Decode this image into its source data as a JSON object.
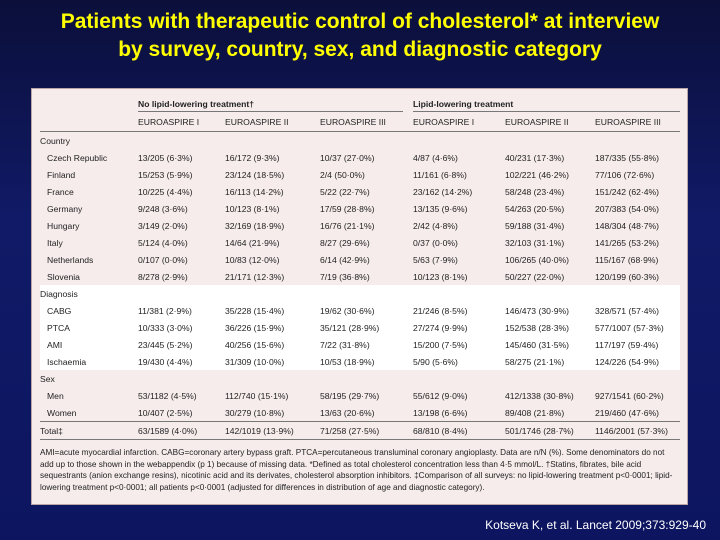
{
  "title": {
    "line1": "Patients with therapeutic control of cholesterol* at interview",
    "line2": "by survey, country, sex, and diagnostic category"
  },
  "table": {
    "group_headers": [
      "No lipid-lowering treatment†",
      "Lipid-lowering treatment"
    ],
    "subheaders": [
      "EUROASPIRE I",
      "EUROASPIRE II",
      "EUROASPIRE III",
      "EUROASPIRE I",
      "EUROASPIRE II",
      "EUROASPIRE III"
    ],
    "sections": [
      {
        "title": "Country",
        "rows": [
          {
            "label": "Czech Republic",
            "values": [
              "13/205 (6·3%)",
              "16/172 (9·3%)",
              "10/37 (27·0%)",
              "4/87 (4·6%)",
              "40/231 (17·3%)",
              "187/335 (55·8%)"
            ]
          },
          {
            "label": "Finland",
            "values": [
              "15/253 (5·9%)",
              "23/124 (18·5%)",
              "2/4 (50·0%)",
              "11/161 (6·8%)",
              "102/221 (46·2%)",
              "77/106 (72·6%)"
            ]
          },
          {
            "label": "France",
            "values": [
              "10/225 (4·4%)",
              "16/113 (14·2%)",
              "5/22 (22·7%)",
              "23/162 (14·2%)",
              "58/248 (23·4%)",
              "151/242 (62·4%)"
            ]
          },
          {
            "label": "Germany",
            "values": [
              "9/248 (3·6%)",
              "10/123 (8·1%)",
              "17/59 (28·8%)",
              "13/135 (9·6%)",
              "54/263 (20·5%)",
              "207/383 (54·0%)"
            ]
          },
          {
            "label": "Hungary",
            "values": [
              "3/149 (2·0%)",
              "32/169 (18·9%)",
              "16/76 (21·1%)",
              "2/42 (4·8%)",
              "59/188 (31·4%)",
              "148/304 (48·7%)"
            ]
          },
          {
            "label": "Italy",
            "values": [
              "5/124 (4·0%)",
              "14/64 (21·9%)",
              "8/27 (29·6%)",
              "0/37 (0·0%)",
              "32/103 (31·1%)",
              "141/265 (53·2%)"
            ]
          },
          {
            "label": "Netherlands",
            "values": [
              "0/107 (0·0%)",
              "10/83 (12·0%)",
              "6/14 (42·9%)",
              "5/63 (7·9%)",
              "106/265 (40·0%)",
              "115/167 (68·9%)"
            ]
          },
          {
            "label": "Slovenia",
            "values": [
              "8/278 (2·9%)",
              "21/171 (12·3%)",
              "7/19 (36·8%)",
              "10/123 (8·1%)",
              "50/227 (22·0%)",
              "120/199 (60·3%)"
            ]
          }
        ]
      },
      {
        "title": "Diagnosis",
        "rows": [
          {
            "label": "CABG",
            "values": [
              "11/381 (2·9%)",
              "35/228 (15·4%)",
              "19/62 (30·6%)",
              "21/246 (8·5%)",
              "146/473 (30·9%)",
              "328/571 (57·4%)"
            ]
          },
          {
            "label": "PTCA",
            "values": [
              "10/333 (3·0%)",
              "36/226 (15·9%)",
              "35/121 (28·9%)",
              "27/274 (9·9%)",
              "152/538 (28·3%)",
              "577/1007 (57·3%)"
            ]
          },
          {
            "label": "AMI",
            "values": [
              "23/445 (5·2%)",
              "40/256 (15·6%)",
              "7/22 (31·8%)",
              "15/200 (7·5%)",
              "145/460 (31·5%)",
              "117/197 (59·4%)"
            ]
          },
          {
            "label": "Ischaemia",
            "values": [
              "19/430 (4·4%)",
              "31/309 (10·0%)",
              "10/53 (18·9%)",
              "5/90 (5·6%)",
              "58/275 (21·1%)",
              "124/226 (54·9%)"
            ]
          }
        ]
      },
      {
        "title": "Sex",
        "rows": [
          {
            "label": "Men",
            "values": [
              "53/1182 (4·5%)",
              "112/740 (15·1%)",
              "58/195 (29·7%)",
              "55/612 (9·0%)",
              "412/1338 (30·8%)",
              "927/1541 (60·2%)"
            ]
          },
          {
            "label": "Women",
            "values": [
              "10/407 (2·5%)",
              "30/279 (10·8%)",
              "13/63 (20·6%)",
              "13/198 (6·6%)",
              "89/408 (21·8%)",
              "219/460 (47·6%)"
            ]
          }
        ]
      }
    ],
    "total": {
      "label": "Total‡",
      "values": [
        "63/1589 (4·0%)",
        "142/1019 (13·9%)",
        "71/258 (27·5%)",
        "68/810 (8·4%)",
        "501/1746 (28·7%)",
        "1146/2001 (57·3%)"
      ]
    },
    "footnote": "AMI=acute myocardial infarction. CABG=coronary artery bypass graft. PTCA=percutaneous transluminal coronary angioplasty. Data are n/N (%). Some denominators do not add up to those shown in the webappendix (p 1) because of missing data. *Defined as total cholesterol concentration less than 4·5 mmol/L. †Statins, fibrates, bile acid sequestrants (anion exchange resins), nicotinic acid and its derivates, cholesterol absorption inhibitors. ‡Comparison of all surveys: no lipid-lowering treatment p<0·0001; lipid-lowering treatment p<0·0001; all patients p<0·0001 (adjusted for differences in distribution of age and diagnostic category)."
  },
  "citation": "Kotseva K, et al. Lancet 2009;373:929-40",
  "colors": {
    "title": "#ffff00",
    "background": "#101a66",
    "panel": "#f6ecec",
    "band": "#ffffff"
  }
}
